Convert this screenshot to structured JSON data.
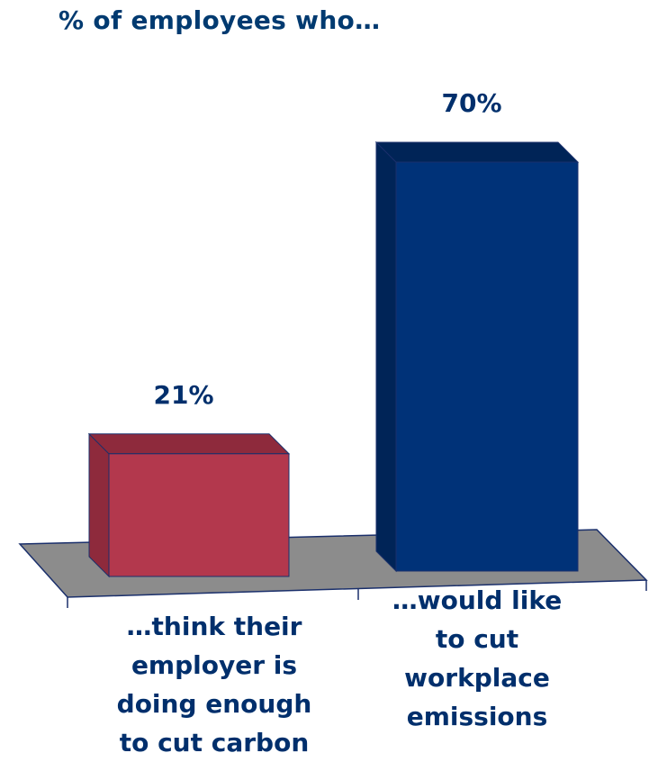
{
  "chart_data": {
    "type": "bar",
    "title": "% of employees who…",
    "categories": [
      {
        "lines": [
          "…think their",
          "employer is",
          "doing enough",
          "to cut carbon"
        ]
      },
      {
        "lines": [
          "…would like",
          "to cut",
          "workplace",
          "emissions"
        ]
      }
    ],
    "values": [
      21,
      70
    ],
    "value_labels": [
      "21%",
      "70%"
    ],
    "colors": {
      "bar_1_front": "#b3384d",
      "bar_1_side": "#8e2a3c",
      "bar_2_front": "#003278",
      "bar_2_side": "#002457",
      "floor": "#8c8c8c",
      "label_color": "#002f6c"
    },
    "style": "3d-bar",
    "grid": false,
    "legend": "none"
  }
}
